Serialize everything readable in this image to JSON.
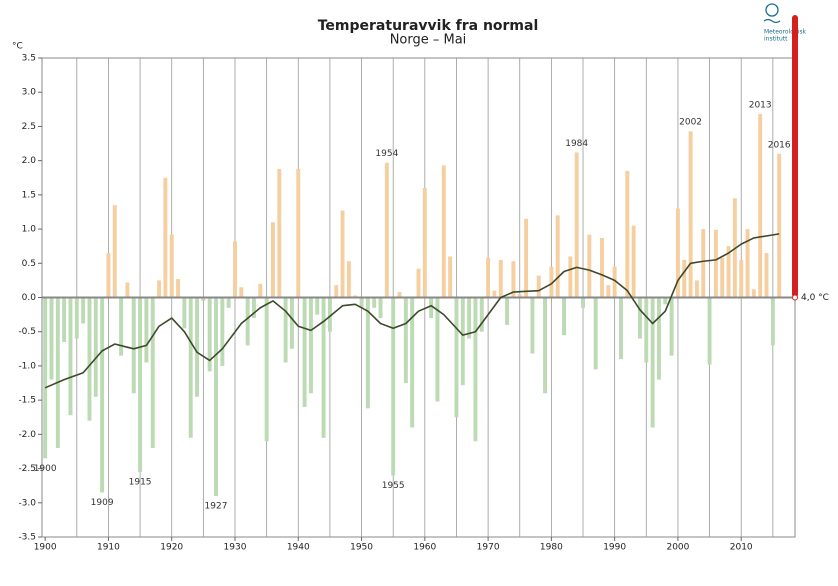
{
  "chart_data": {
    "type": "bar",
    "title": "Temperaturavvik fra normal",
    "subtitle": "Norge – Mai",
    "y_unit": "°C",
    "normal_label": "4,0 °C",
    "logo_text": [
      "Meteorologisk",
      "institutt"
    ],
    "positive_color": "#f6cfa0",
    "negative_color": "#bcdab4",
    "normal_color": "#d42020",
    "x": [
      1900,
      1901,
      1902,
      1903,
      1904,
      1905,
      1906,
      1907,
      1908,
      1909,
      1910,
      1911,
      1912,
      1913,
      1914,
      1915,
      1916,
      1917,
      1918,
      1919,
      1920,
      1921,
      1922,
      1923,
      1924,
      1925,
      1926,
      1927,
      1928,
      1929,
      1930,
      1931,
      1932,
      1933,
      1934,
      1935,
      1936,
      1937,
      1938,
      1939,
      1940,
      1941,
      1942,
      1943,
      1944,
      1945,
      1946,
      1947,
      1948,
      1949,
      1950,
      1951,
      1952,
      1953,
      1954,
      1955,
      1956,
      1957,
      1958,
      1959,
      1960,
      1961,
      1962,
      1963,
      1964,
      1965,
      1966,
      1967,
      1968,
      1969,
      1970,
      1971,
      1972,
      1973,
      1974,
      1975,
      1976,
      1977,
      1978,
      1979,
      1980,
      1981,
      1982,
      1983,
      1984,
      1985,
      1986,
      1987,
      1988,
      1989,
      1990,
      1991,
      1992,
      1993,
      1994,
      1995,
      1996,
      1997,
      1998,
      1999,
      2000,
      2001,
      2002,
      2003,
      2004,
      2005,
      2006,
      2007,
      2008,
      2009,
      2010,
      2011,
      2012,
      2013,
      2014,
      2015,
      2016
    ],
    "values": [
      -2.35,
      -1.2,
      -2.2,
      -0.65,
      -1.72,
      -0.6,
      -0.38,
      -1.8,
      -1.45,
      -2.85,
      0.65,
      1.35,
      -0.85,
      0.22,
      -1.4,
      -2.55,
      -0.95,
      -2.2,
      0.25,
      1.75,
      0.92,
      0.27,
      -0.45,
      -2.05,
      -1.45,
      -0.05,
      -1.08,
      -2.9,
      -1.0,
      -0.15,
      0.82,
      0.15,
      -0.7,
      -0.3,
      0.2,
      -2.1,
      1.1,
      1.88,
      -0.95,
      -0.75,
      1.88,
      -1.6,
      -1.4,
      -0.25,
      -2.05,
      -0.5,
      0.18,
      1.27,
      0.53,
      0.03,
      -0.15,
      -1.62,
      -0.15,
      -0.3,
      1.97,
      -2.6,
      0.08,
      -1.25,
      -1.9,
      0.42,
      1.6,
      -0.3,
      -1.52,
      1.93,
      0.6,
      -1.75,
      -1.28,
      -0.6,
      -2.1,
      -0.5,
      0.58,
      0.1,
      0.55,
      -0.4,
      0.53,
      0.05,
      1.15,
      -0.82,
      0.32,
      -1.4,
      0.45,
      1.2,
      -0.55,
      0.6,
      2.12,
      -0.15,
      0.92,
      -1.05,
      0.87,
      0.18,
      0.45,
      -0.9,
      1.85,
      1.05,
      -0.6,
      -0.95,
      -1.9,
      -1.2,
      -0.1,
      -0.85,
      1.3,
      0.55,
      2.43,
      0.25,
      1.0,
      -0.98,
      0.99,
      0.58,
      0.75,
      1.45,
      0.55,
      1.0,
      0.12,
      2.68,
      0.65,
      -0.7,
      2.1
    ],
    "trend": {
      "color": "#3d4a2a",
      "x": [
        1900,
        1903,
        1906,
        1909,
        1911,
        1914,
        1916,
        1918,
        1920,
        1922,
        1924,
        1926,
        1928,
        1931,
        1934,
        1936,
        1938,
        1940,
        1942,
        1944,
        1947,
        1949,
        1951,
        1953,
        1955,
        1957,
        1959,
        1961,
        1963,
        1966,
        1968,
        1970,
        1972,
        1974,
        1976,
        1978,
        1980,
        1982,
        1984,
        1986,
        1988,
        1990,
        1992,
        1994,
        1996,
        1998,
        2000,
        2002,
        2004,
        2006,
        2008,
        2010,
        2012,
        2016
      ],
      "values": [
        -1.32,
        -1.2,
        -1.1,
        -0.78,
        -0.68,
        -0.75,
        -0.7,
        -0.42,
        -0.3,
        -0.5,
        -0.8,
        -0.92,
        -0.75,
        -0.38,
        -0.15,
        -0.05,
        -0.2,
        -0.42,
        -0.48,
        -0.35,
        -0.12,
        -0.1,
        -0.2,
        -0.38,
        -0.45,
        -0.38,
        -0.2,
        -0.12,
        -0.25,
        -0.55,
        -0.5,
        -0.25,
        0.0,
        0.08,
        0.09,
        0.1,
        0.2,
        0.38,
        0.44,
        0.4,
        0.33,
        0.25,
        0.1,
        -0.18,
        -0.38,
        -0.2,
        0.25,
        0.5,
        0.53,
        0.55,
        0.65,
        0.78,
        0.87,
        0.93
      ]
    },
    "annotations": [
      "1900",
      "1909",
      "1915",
      "1927",
      "1954",
      "1955",
      "1984",
      "2002",
      "2013",
      "2016"
    ],
    "xlim": [
      1899.5,
      2018.5
    ],
    "xticks": [
      1900,
      1910,
      1920,
      1930,
      1940,
      1950,
      1960,
      1970,
      1980,
      1990,
      2000,
      2010
    ],
    "xgrid": [
      1905,
      1910,
      1915,
      1920,
      1925,
      1930,
      1935,
      1940,
      1945,
      1950,
      1955,
      1960,
      1965,
      1970,
      1975,
      1980,
      1985,
      1990,
      1995,
      2000,
      2005,
      2010,
      2015
    ],
    "ylim": [
      -3.5,
      3.5
    ],
    "yticks": [
      3.5,
      {
        "value": 3,
        "label": "3.0"
      },
      2.5,
      {
        "value": 2,
        "label": "2.0"
      },
      1.5,
      {
        "value": 1,
        "label": "1.0"
      },
      0.5,
      {
        "value": 0,
        "label": "0.0"
      },
      -0.5,
      {
        "value": -1,
        "label": "-1.0"
      },
      -1.5,
      {
        "value": -2,
        "label": "-2.0"
      },
      -2.5,
      {
        "value": -3,
        "label": "-3.0"
      },
      -3.5
    ]
  }
}
